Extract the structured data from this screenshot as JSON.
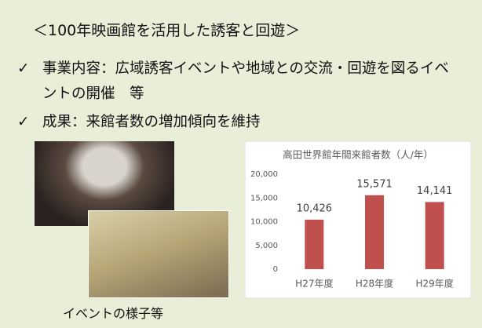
{
  "heading": "＜100年映画館を活用した誘客と回遊＞",
  "bullets": [
    {
      "marker": "✓",
      "text": "事業内容：広域誘客イベントや地域との交流・回遊を図るイベントの開催　等"
    },
    {
      "marker": "✓",
      "text": "成果：来館者数の増加傾向を維持"
    }
  ],
  "caption": "イベントの様子等",
  "chart_data": {
    "type": "bar",
    "title": "高田世界館年間来館者数（人/年）",
    "categories": [
      "H27年度",
      "H28年度",
      "H29年度"
    ],
    "values": [
      10426,
      15571,
      14141
    ],
    "value_labels": [
      "10,426",
      "15,571",
      "14,141"
    ],
    "color": "#c0504d",
    "ylim": [
      0,
      20000
    ],
    "yticks": [
      0,
      {
        "value": 5000,
        "label": "5,000"
      },
      {
        "value": 10000,
        "label": "10,000"
      },
      {
        "value": 15000,
        "label": "15,000"
      },
      {
        "value": 20000,
        "label": "20,000"
      }
    ],
    "grid": false
  }
}
